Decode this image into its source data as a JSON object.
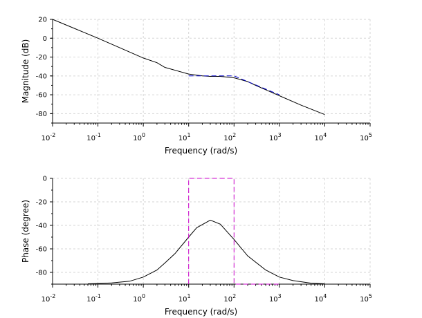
{
  "chart_data": [
    {
      "type": "line",
      "xscale": "log",
      "xlim": [
        0.01,
        100000
      ],
      "ylim": [
        -90,
        20
      ],
      "xlabel": "Frequency (rad/s)",
      "ylabel": "Magnitude (dB)",
      "yticks": [
        20,
        0,
        -20,
        -40,
        -60,
        -80
      ],
      "xticks": [
        {
          "base": "10",
          "exp": "-2"
        },
        {
          "base": "10",
          "exp": "-1"
        },
        {
          "base": "10",
          "exp": "0"
        },
        {
          "base": "10",
          "exp": "1"
        },
        {
          "base": "10",
          "exp": "2"
        },
        {
          "base": "10",
          "exp": "3"
        },
        {
          "base": "10",
          "exp": "4"
        },
        {
          "base": "10",
          "exp": "5"
        }
      ],
      "grid": true,
      "series": [
        {
          "style": "solid",
          "color": "#000000",
          "x": [
            0.01,
            0.03,
            0.1,
            0.3,
            1,
            2,
            3,
            10,
            20,
            30,
            50,
            100,
            200,
            300,
            1000,
            3000,
            10000
          ],
          "y": [
            20,
            10.5,
            0,
            -10,
            -21,
            -26,
            -31,
            -38,
            -40,
            -40.5,
            -40.5,
            -42,
            -46,
            -50,
            -61,
            -71,
            -81
          ]
        },
        {
          "style": "dashed",
          "color": "#0000cc",
          "x": [
            10,
            100,
            1000
          ],
          "y": [
            -40,
            -40,
            -60
          ]
        }
      ]
    },
    {
      "type": "line",
      "xscale": "log",
      "xlim": [
        0.01,
        100000
      ],
      "ylim": [
        -90,
        0
      ],
      "xlabel": "Frequency (rad/s)",
      "ylabel": "Phase (degree)",
      "yticks": [
        0,
        -20,
        -40,
        -60,
        -80
      ],
      "xticks": [
        {
          "base": "10",
          "exp": "-2"
        },
        {
          "base": "10",
          "exp": "-1"
        },
        {
          "base": "10",
          "exp": "0"
        },
        {
          "base": "10",
          "exp": "1"
        },
        {
          "base": "10",
          "exp": "2"
        },
        {
          "base": "10",
          "exp": "3"
        },
        {
          "base": "10",
          "exp": "4"
        },
        {
          "base": "10",
          "exp": "5"
        }
      ],
      "grid": true,
      "series": [
        {
          "style": "solid",
          "color": "#000000",
          "x": [
            0.06,
            0.1,
            0.2,
            0.5,
            1,
            2,
            3,
            5,
            10,
            15,
            30,
            50,
            100,
            200,
            500,
            1000,
            2000,
            5000,
            10000
          ],
          "y": [
            -89.7,
            -89.5,
            -89,
            -87.5,
            -84,
            -78,
            -72,
            -64,
            -50,
            -42,
            -35.5,
            -39,
            -52,
            -66,
            -78,
            -84,
            -87,
            -89.2,
            -89.7
          ]
        },
        {
          "style": "dashed",
          "color": "#cc00cc",
          "x": [
            10,
            10,
            100,
            100,
            1000
          ],
          "y": [
            -90,
            0,
            0,
            -90,
            -90
          ]
        }
      ]
    }
  ]
}
